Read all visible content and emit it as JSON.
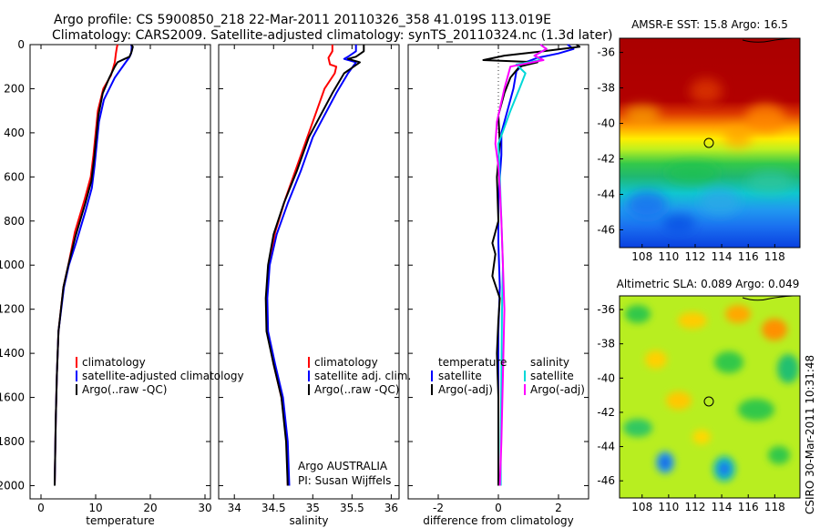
{
  "figure": {
    "title_line1": "Argo profile: CS 5900850_218 22-Mar-2011 20110326_358 41.019S 113.019E",
    "title_line2": "Climatology: CARS2009. Satellite-adjusted climatology: synTS_20110324.nc (1.3d later)",
    "credit": "Argo AUSTRALIA",
    "pi": "PI: Susan Wijffels",
    "side_note": "CSIRO 30-Mar-2011 10:31:48"
  },
  "chart_data": [
    {
      "type": "line",
      "xlabel": "temperature",
      "xlim": [
        -2,
        31
      ],
      "ylim": [
        2060,
        0
      ],
      "xticks": [
        0,
        10,
        20,
        30
      ],
      "yticks": [
        0,
        200,
        400,
        600,
        800,
        1000,
        1200,
        1400,
        1600,
        1800,
        2000
      ],
      "legend": [
        "climatology",
        "satellite-adjusted climatology",
        "Argo(..raw -QC)"
      ],
      "series": [
        {
          "name": "climatology",
          "color": "#ff0000",
          "x": [
            14.0,
            13.9,
            13.7,
            13.5,
            12.8,
            11.4,
            10.4,
            10.0,
            9.6,
            9.1,
            8.0,
            6.2,
            5.0,
            4.1,
            3.2,
            2.9,
            2.7,
            2.5
          ],
          "y": [
            0,
            10,
            40,
            80,
            140,
            200,
            300,
            400,
            500,
            600,
            700,
            850,
            1000,
            1100,
            1300,
            1500,
            1700,
            2000
          ]
        },
        {
          "name": "satellite-adjusted climatology",
          "color": "#0000ff",
          "x": [
            16.5,
            16.6,
            16.5,
            16.1,
            15.5,
            13.5,
            11.5,
            10.6,
            10.2,
            9.8,
            9.3,
            8.2,
            6.4,
            5.1,
            4.2,
            3.2,
            2.9,
            2.7,
            2.5
          ],
          "y": [
            0,
            10,
            40,
            60,
            80,
            150,
            250,
            350,
            450,
            550,
            650,
            750,
            900,
            1000,
            1100,
            1300,
            1500,
            1700,
            2000
          ]
        },
        {
          "name": "Argo(..raw -QC)",
          "color": "#000000",
          "x": [
            16.5,
            16.8,
            16.6,
            16.2,
            15.3,
            14.0,
            13.5,
            12.5,
            11.3,
            10.5,
            10.1,
            9.7,
            9.2,
            8.1,
            6.3,
            5.0,
            4.1,
            3.2,
            2.9,
            2.7,
            2.5
          ],
          "y": [
            0,
            10,
            30,
            55,
            65,
            80,
            100,
            150,
            220,
            320,
            420,
            520,
            620,
            720,
            870,
            1000,
            1100,
            1300,
            1500,
            1700,
            2000
          ]
        }
      ]
    },
    {
      "type": "line",
      "xlabel": "salinity",
      "xlim": [
        33.8,
        36.1
      ],
      "ylim": [
        2060,
        0
      ],
      "xticks": [
        34,
        34.5,
        35,
        35.5,
        36
      ],
      "legend": [
        "climatology",
        "satellite adj. clim.",
        "Argo(..raw -QC)"
      ],
      "series": [
        {
          "name": "climatology",
          "color": "#ff0000",
          "x": [
            35.25,
            35.25,
            35.2,
            35.22,
            35.3,
            35.28,
            35.15,
            35.05,
            34.95,
            34.8,
            34.65,
            34.52,
            34.44,
            34.41,
            34.42,
            34.5,
            34.6,
            34.67,
            34.68
          ],
          "y": [
            0,
            30,
            60,
            90,
            100,
            130,
            200,
            300,
            400,
            550,
            700,
            850,
            1000,
            1150,
            1300,
            1450,
            1600,
            1800,
            2000
          ]
        },
        {
          "name": "satellite adj. clim.",
          "color": "#0000ff",
          "x": [
            35.55,
            35.55,
            35.45,
            35.4,
            35.55,
            35.45,
            35.3,
            35.15,
            35.0,
            34.85,
            34.68,
            34.54,
            34.45,
            34.42,
            34.43,
            34.52,
            34.62,
            34.68,
            34.7
          ],
          "y": [
            0,
            30,
            55,
            65,
            80,
            130,
            220,
            320,
            420,
            570,
            720,
            860,
            1000,
            1150,
            1300,
            1450,
            1600,
            1800,
            2000
          ]
        },
        {
          "name": "Argo(..raw -QC)",
          "color": "#000000",
          "x": [
            35.65,
            35.65,
            35.55,
            35.45,
            35.6,
            35.4,
            35.25,
            35.1,
            34.95,
            34.8,
            34.63,
            34.5,
            34.43,
            34.4,
            34.41,
            34.5,
            34.6,
            34.66,
            34.68
          ],
          "y": [
            0,
            30,
            55,
            65,
            80,
            130,
            220,
            320,
            420,
            570,
            720,
            860,
            1000,
            1150,
            1300,
            1450,
            1600,
            1800,
            2000
          ]
        }
      ]
    },
    {
      "type": "line",
      "xlabel": "difference from climatology",
      "xlim": [
        -3.0,
        3.0
      ],
      "ylim": [
        2060,
        0
      ],
      "xticks": [
        -2,
        0,
        2
      ],
      "legend_temperature_title": "temperature",
      "legend_salinity_title": "salinity",
      "legend_temperature": [
        "satellite",
        "Argo(-adj)"
      ],
      "legend_salinity": [
        "satellite",
        "Argo(-adj)"
      ],
      "series": [
        {
          "name": "temperature satellite",
          "color": "#0000ff",
          "x": [
            2.3,
            2.5,
            2.0,
            1.3,
            0.9,
            0.6,
            0.5,
            0.3,
            0.1,
            0.1,
            0.0,
            0.0,
            0.05,
            0.0,
            0.0,
            0.0,
            0.0
          ],
          "y": [
            0,
            20,
            40,
            60,
            80,
            120,
            200,
            300,
            400,
            500,
            700,
            900,
            1100,
            1300,
            1500,
            1700,
            2000
          ]
        },
        {
          "name": "temperature Argo(-adj)",
          "color": "#000000",
          "x": [
            2.6,
            2.7,
            1.5,
            0.2,
            -0.5,
            1.3,
            0.7,
            0.4,
            0.2,
            0.0,
            0.05,
            -0.05,
            0.0,
            -0.2,
            -0.1,
            -0.2,
            0.05,
            0.0,
            -0.05,
            0.0,
            0.0,
            0.0
          ],
          "y": [
            0,
            10,
            30,
            50,
            70,
            80,
            100,
            150,
            220,
            320,
            450,
            600,
            800,
            900,
            950,
            1050,
            1150,
            1250,
            1400,
            1600,
            1800,
            2000
          ]
        },
        {
          "name": "salinity satellite",
          "color": "#00d8d8",
          "x": [
            1.4,
            1.6,
            1.2,
            1.4,
            0.6,
            0.9,
            0.7,
            0.4,
            0.0,
            0.05,
            0.1,
            0.15,
            0.12,
            0.1,
            0.08,
            0.08
          ],
          "y": [
            0,
            20,
            50,
            70,
            90,
            130,
            200,
            300,
            450,
            600,
            800,
            1000,
            1200,
            1500,
            1800,
            2000
          ]
        },
        {
          "name": "salinity Argo(-adj)",
          "color": "#ff00ff",
          "x": [
            1.4,
            1.6,
            1.2,
            1.5,
            0.4,
            0.2,
            -0.05,
            -0.1,
            0.0,
            0.05,
            0.1,
            0.15,
            0.2,
            0.15,
            0.1,
            0.05
          ],
          "y": [
            0,
            20,
            50,
            70,
            100,
            200,
            350,
            450,
            550,
            650,
            800,
            1000,
            1200,
            1500,
            1800,
            2000
          ]
        }
      ]
    },
    {
      "type": "heatmap",
      "title": "AMSR-E SST: 15.8 Argo: 16.5",
      "xlim": [
        106.3,
        119.9
      ],
      "ylim": [
        -47.0,
        -35.2
      ],
      "xticks": [
        108,
        110,
        112,
        114,
        116,
        118
      ],
      "yticks": [
        -36,
        -38,
        -40,
        -42,
        -44,
        -46
      ],
      "marker": {
        "lon": 113.0,
        "lat": -41.0
      }
    },
    {
      "type": "heatmap",
      "title": "Altimetric SLA: 0.089 Argo: 0.049",
      "xlim": [
        106.3,
        119.9
      ],
      "ylim": [
        -47.0,
        -35.2
      ],
      "xticks": [
        108,
        110,
        112,
        114,
        116,
        118
      ],
      "yticks": [
        -36,
        -38,
        -40,
        -42,
        -44,
        -46
      ],
      "marker": {
        "lon": 113.0,
        "lat": -41.0
      }
    }
  ]
}
